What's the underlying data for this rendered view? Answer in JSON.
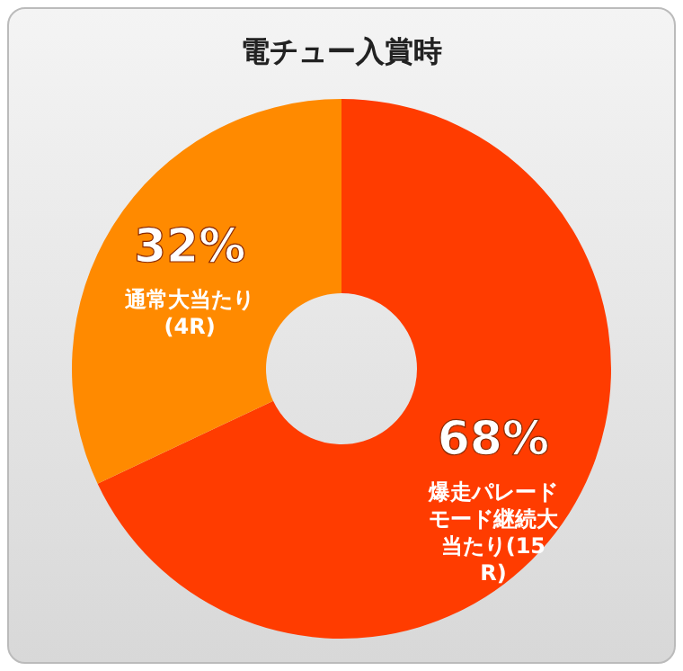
{
  "chart_data": {
    "type": "donut",
    "title": "電チュー入賞時",
    "categories": [
      "爆走パレードモード継続大当たり(15R)",
      "通常大当たり(4R)"
    ],
    "values": [
      68,
      32
    ],
    "colors": [
      "#ff3c00",
      "#ff8a00"
    ],
    "value_labels": [
      "68%",
      "32%"
    ],
    "legend": false
  }
}
